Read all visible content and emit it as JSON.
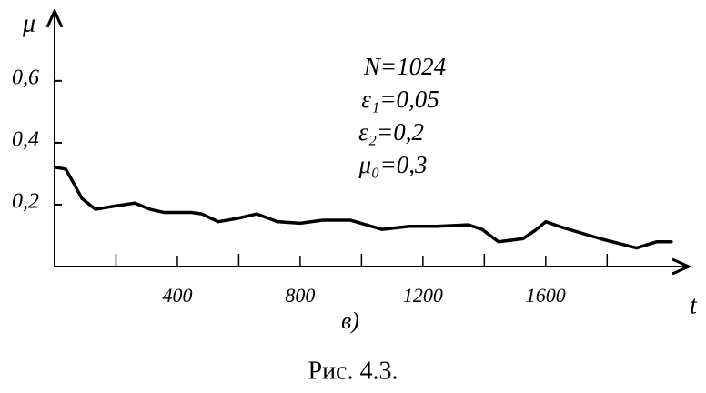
{
  "chart_data": {
    "type": "line",
    "y_label": "μ",
    "x_label": "t",
    "annotations": [
      "N=1024",
      "ε₁=0,05",
      "ε₂=0,2",
      "μ₀=0,3"
    ],
    "panel_label": "в)",
    "caption": "Рис. 4.3.",
    "x": [
      6,
      36,
      59,
      89,
      133,
      193,
      261,
      311,
      356,
      444,
      480,
      533,
      593,
      658,
      726,
      800,
      874,
      963,
      1067,
      1156,
      1244,
      1348,
      1393,
      1446,
      1526,
      1570,
      1600,
      1659,
      1778,
      1896,
      1961,
      2009
    ],
    "series": [
      {
        "color": "#000000",
        "values": [
          0.32,
          0.315,
          0.275,
          0.22,
          0.185,
          0.195,
          0.205,
          0.185,
          0.175,
          0.175,
          0.17,
          0.145,
          0.155,
          0.17,
          0.145,
          0.14,
          0.15,
          0.15,
          0.12,
          0.13,
          0.13,
          0.135,
          0.12,
          0.08,
          0.09,
          0.12,
          0.145,
          0.125,
          0.09,
          0.06,
          0.08,
          0.08
        ]
      }
    ],
    "xlim": [
      0,
      2060
    ],
    "ylim": [
      0,
      0.82
    ],
    "xticks": [
      400,
      800,
      1200,
      1600
    ],
    "xminor_ticks": [
      200,
      600,
      1000,
      1400,
      1800
    ],
    "yticks": [
      {
        "value": 0.2,
        "label": "0,2"
      },
      {
        "value": 0.4,
        "label": "0,4"
      },
      {
        "value": 0.6,
        "label": "0,6"
      }
    ]
  }
}
